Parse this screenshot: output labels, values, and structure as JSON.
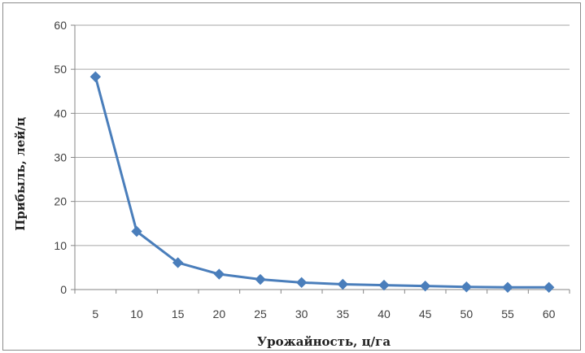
{
  "chart_data": {
    "type": "line",
    "title": "",
    "xlabel": "Урожайность, ц/га",
    "ylabel": "Прибыль, лей/ц",
    "x": [
      5,
      10,
      15,
      20,
      25,
      30,
      35,
      40,
      45,
      50,
      55,
      60
    ],
    "series": [
      {
        "values": [
          48.3,
          13.2,
          6.1,
          3.5,
          2.3,
          1.6,
          1.2,
          1.0,
          0.8,
          0.6,
          0.5,
          0.5
        ]
      }
    ],
    "ylim": [
      0,
      60
    ],
    "yticks": [
      0,
      10,
      20,
      30,
      40,
      50,
      60
    ],
    "grid": "horizontal",
    "legend": "none",
    "colors": {
      "series": "#4a7ebb",
      "grid": "#a6a6a6",
      "axis": "#868686"
    }
  }
}
